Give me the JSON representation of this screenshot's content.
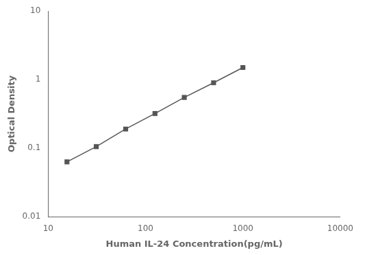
{
  "chart_data": {
    "type": "line",
    "x": [
      15.6,
      31.2,
      62.5,
      125,
      250,
      500,
      1000
    ],
    "values": [
      0.063,
      0.105,
      0.19,
      0.32,
      0.55,
      0.9,
      1.5
    ],
    "xlabel": "Human IL-24 Concentration(pg/mL)",
    "ylabel": "Optical Density",
    "xlim": [
      10,
      10000
    ],
    "ylim": [
      0.01,
      10
    ],
    "xticks": [
      10,
      100,
      1000,
      10000
    ],
    "yticks": [
      0.01,
      0.1,
      1,
      10
    ],
    "log": true,
    "grid": false,
    "color": "#555555",
    "marker": "square"
  }
}
